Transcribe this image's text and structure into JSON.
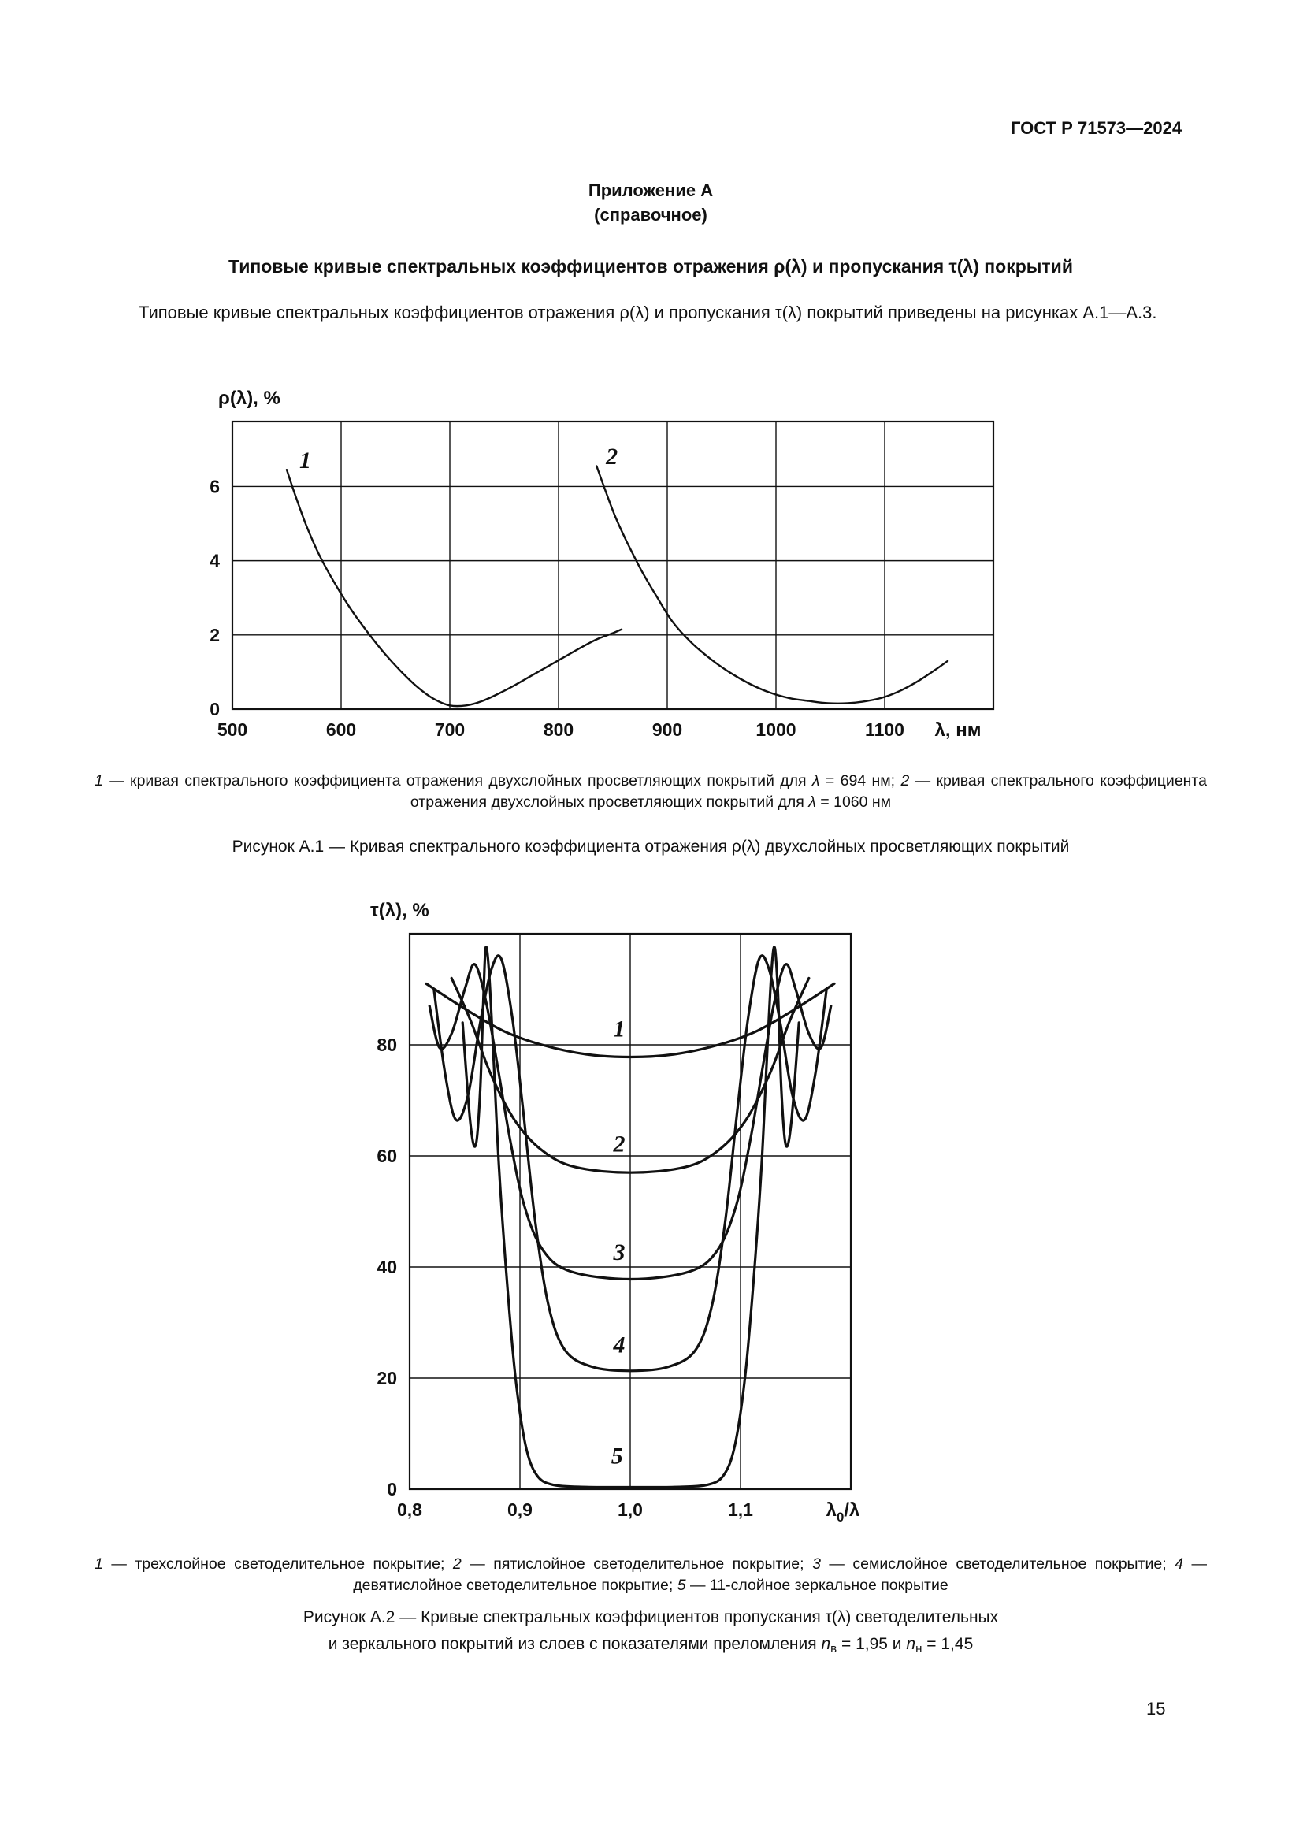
{
  "page": {
    "header": "ГОСТ Р 71573—2024",
    "number": "15",
    "ink_color": "#111111",
    "background_color": "#ffffff"
  },
  "appendix": {
    "label": "Приложение А",
    "kind": "(справочное)"
  },
  "title": "Типовые кривые спектральных коэффициентов отражения ρ(λ) и пропускания τ(λ) покрытий",
  "intro": "Типовые кривые спектральных коэффициентов отражения ρ(λ) и пропускания τ(λ) покрытий приведены на рисунках А.1—А.3.",
  "figure1": {
    "legend": [
      {
        "t": "1",
        "st": "i"
      },
      {
        "t": " — кривая спектрального коэффициента отражения двухслойных просветляющих покрытий для "
      },
      {
        "t": "λ",
        "st": "i"
      },
      {
        "t": " = 694 нм; "
      },
      {
        "t": "2",
        "st": "i"
      },
      {
        "t": " — кривая спектрального коэффициента отражения двухслойных просветляющих покрытий для "
      },
      {
        "t": "λ",
        "st": "i"
      },
      {
        "t": " = 1060 нм"
      }
    ],
    "caption": "Рисунок А.1 — Кривая спектрального коэффициента отражения ρ(λ) двухслойных просветляющих покрытий"
  },
  "figure2": {
    "legend": [
      {
        "t": "1",
        "st": "i"
      },
      {
        "t": " — трехслойное светоделительное покрытие; "
      },
      {
        "t": "2",
        "st": "i"
      },
      {
        "t": " — пятислойное светоделительное покрытие; "
      },
      {
        "t": "3",
        "st": "i"
      },
      {
        "t": " — семислойное светоделительное покрытие; "
      },
      {
        "t": "4",
        "st": "i"
      },
      {
        "t": " — девятислойное светоделительное покрытие; "
      },
      {
        "t": "5",
        "st": "i"
      },
      {
        "t": " — 11-слойное зеркальное покрытие"
      }
    ],
    "caption": [
      {
        "t": "Рисунок А.2 — Кривые спектральных коэффициентов пропускания τ(λ) светоделительных"
      },
      {
        "br": true
      },
      {
        "t": "и зеркального покрытий из слоев с показателями преломления "
      },
      {
        "t": "n",
        "st": "i"
      },
      {
        "t": "в",
        "st": "sub"
      },
      {
        "t": " = 1,95 и "
      },
      {
        "t": "n",
        "st": "i"
      },
      {
        "t": "н",
        "st": "sub"
      },
      {
        "t": " = 1,45"
      }
    ]
  },
  "chart_data": [
    {
      "type": "line",
      "title": "Рисунок А.1",
      "ylabel": "ρ(λ), %",
      "xlabel_parts": [
        {
          "t": "λ, нм"
        }
      ],
      "xlim": [
        500,
        1200
      ],
      "ylim": [
        0,
        7.75
      ],
      "grid": true,
      "legend_position": "none",
      "xticks": [
        {
          "v": 500,
          "label": "500"
        },
        {
          "v": 600,
          "label": "600"
        },
        {
          "v": 700,
          "label": "700"
        },
        {
          "v": 800,
          "label": "800"
        },
        {
          "v": 900,
          "label": "900"
        },
        {
          "v": 1000,
          "label": "1000"
        },
        {
          "v": 1100,
          "label": "1100"
        }
      ],
      "yticks": [
        {
          "v": 0,
          "label": "0"
        },
        {
          "v": 2,
          "label": "2"
        },
        {
          "v": 4,
          "label": "4"
        },
        {
          "v": 6,
          "label": "6"
        }
      ],
      "series": [
        {
          "name": "1",
          "label_pos": [
            567,
            6.5
          ],
          "points": [
            [
              550,
              6.45
            ],
            [
              558,
              5.75
            ],
            [
              568,
              4.95
            ],
            [
              580,
              4.15
            ],
            [
              595,
              3.35
            ],
            [
              610,
              2.65
            ],
            [
              625,
              2.05
            ],
            [
              640,
              1.5
            ],
            [
              655,
              1.02
            ],
            [
              670,
              0.6
            ],
            [
              685,
              0.28
            ],
            [
              700,
              0.1
            ],
            [
              715,
              0.1
            ],
            [
              730,
              0.22
            ],
            [
              745,
              0.42
            ],
            [
              760,
              0.65
            ],
            [
              775,
              0.9
            ],
            [
              790,
              1.15
            ],
            [
              805,
              1.4
            ],
            [
              820,
              1.65
            ],
            [
              835,
              1.88
            ],
            [
              850,
              2.05
            ],
            [
              858,
              2.15
            ]
          ]
        },
        {
          "name": "2",
          "label_pos": [
            849,
            6.6
          ],
          "points": [
            [
              835,
              6.55
            ],
            [
              843,
              5.9
            ],
            [
              852,
              5.2
            ],
            [
              863,
              4.5
            ],
            [
              876,
              3.75
            ],
            [
              890,
              3.05
            ],
            [
              905,
              2.35
            ],
            [
              922,
              1.8
            ],
            [
              940,
              1.35
            ],
            [
              958,
              0.98
            ],
            [
              976,
              0.68
            ],
            [
              994,
              0.45
            ],
            [
              1012,
              0.3
            ],
            [
              1030,
              0.22
            ],
            [
              1048,
              0.16
            ],
            [
              1066,
              0.16
            ],
            [
              1084,
              0.22
            ],
            [
              1100,
              0.33
            ],
            [
              1116,
              0.52
            ],
            [
              1132,
              0.78
            ],
            [
              1146,
              1.05
            ],
            [
              1158,
              1.3
            ]
          ]
        }
      ]
    },
    {
      "type": "line",
      "title": "Рисунок А.2",
      "ylabel": "τ(λ), %",
      "xlabel_parts": [
        {
          "t": "λ"
        },
        {
          "t": "0",
          "st": "sub"
        },
        {
          "t": "/λ"
        }
      ],
      "xlim": [
        0.8,
        1.2
      ],
      "ylim": [
        0,
        100
      ],
      "grid": true,
      "legend_position": "none",
      "xticks": [
        {
          "v": 0.8,
          "label": "0,8"
        },
        {
          "v": 0.9,
          "label": "0,9"
        },
        {
          "v": 1.0,
          "label": "1,0"
        },
        {
          "v": 1.1,
          "label": "1,1"
        }
      ],
      "yticks": [
        {
          "v": 0,
          "label": "0"
        },
        {
          "v": 20,
          "label": "20"
        },
        {
          "v": 40,
          "label": "40"
        },
        {
          "v": 60,
          "label": "60"
        },
        {
          "v": 80,
          "label": "80"
        }
      ],
      "series": [
        {
          "name": "1",
          "label_pos": [
            0.99,
            81.5
          ],
          "points": [
            [
              0.815,
              91
            ],
            [
              0.85,
              86.5
            ],
            [
              0.885,
              82.5
            ],
            [
              0.92,
              80
            ],
            [
              0.96,
              78.3
            ],
            [
              1.0,
              77.8
            ],
            [
              1.04,
              78.3
            ],
            [
              1.08,
              80
            ],
            [
              1.115,
              82.5
            ],
            [
              1.15,
              86.5
            ],
            [
              1.185,
              91
            ]
          ]
        },
        {
          "name": "2",
          "label_pos": [
            0.99,
            60.8
          ],
          "points": [
            [
              0.838,
              92
            ],
            [
              0.855,
              84.5
            ],
            [
              0.873,
              75
            ],
            [
              0.895,
              66.5
            ],
            [
              0.92,
              61
            ],
            [
              0.95,
              58
            ],
            [
              1.0,
              57
            ],
            [
              1.05,
              58
            ],
            [
              1.08,
              61
            ],
            [
              1.105,
              66.5
            ],
            [
              1.127,
              75
            ],
            [
              1.145,
              84.5
            ],
            [
              1.162,
              92
            ]
          ]
        },
        {
          "name": "3",
          "label_pos": [
            0.99,
            41.3
          ],
          "points": [
            [
              0.818,
              87
            ],
            [
              0.827,
              79.5
            ],
            [
              0.838,
              82
            ],
            [
              0.85,
              90
            ],
            [
              0.859,
              94.5
            ],
            [
              0.869,
              88
            ],
            [
              0.879,
              77
            ],
            [
              0.891,
              63
            ],
            [
              0.904,
              51
            ],
            [
              0.921,
              43
            ],
            [
              0.946,
              39.2
            ],
            [
              1.0,
              37.8
            ],
            [
              1.054,
              39.2
            ],
            [
              1.079,
              43
            ],
            [
              1.096,
              51
            ],
            [
              1.109,
              63
            ],
            [
              1.121,
              77
            ],
            [
              1.131,
              88
            ],
            [
              1.141,
              94.5
            ],
            [
              1.15,
              90
            ],
            [
              1.162,
              82
            ],
            [
              1.173,
              79.5
            ],
            [
              1.182,
              87
            ]
          ]
        },
        {
          "name": "4",
          "label_pos": [
            0.99,
            24.6
          ],
          "points": [
            [
              0.822,
              90
            ],
            [
              0.832,
              75
            ],
            [
              0.842,
              66.5
            ],
            [
              0.853,
              71
            ],
            [
              0.864,
              84
            ],
            [
              0.874,
              93.5
            ],
            [
              0.883,
              95.5
            ],
            [
              0.893,
              85
            ],
            [
              0.903,
              68
            ],
            [
              0.914,
              48
            ],
            [
              0.926,
              33
            ],
            [
              0.941,
              25
            ],
            [
              0.966,
              22
            ],
            [
              1.0,
              21.3
            ],
            [
              1.034,
              22
            ],
            [
              1.059,
              25
            ],
            [
              1.074,
              33
            ],
            [
              1.086,
              48
            ],
            [
              1.097,
              68
            ],
            [
              1.107,
              85
            ],
            [
              1.117,
              95.5
            ],
            [
              1.126,
              93.5
            ],
            [
              1.136,
              84
            ],
            [
              1.147,
              71
            ],
            [
              1.158,
              66.5
            ],
            [
              1.168,
              75
            ],
            [
              1.178,
              90
            ]
          ]
        },
        {
          "name": "5",
          "label_pos": [
            0.988,
            4.6
          ],
          "points": [
            [
              0.848,
              84
            ],
            [
              0.855,
              66
            ],
            [
              0.86,
              62
            ],
            [
              0.864,
              72
            ],
            [
              0.867,
              89
            ],
            [
              0.869,
              97.5
            ],
            [
              0.872,
              93
            ],
            [
              0.876,
              78
            ],
            [
              0.881,
              58
            ],
            [
              0.888,
              38
            ],
            [
              0.896,
              20
            ],
            [
              0.905,
              8
            ],
            [
              0.915,
              2.6
            ],
            [
              0.93,
              0.8
            ],
            [
              0.96,
              0.4
            ],
            [
              1.0,
              0.35
            ],
            [
              1.04,
              0.4
            ],
            [
              1.07,
              0.8
            ],
            [
              1.085,
              2.6
            ],
            [
              1.095,
              8
            ],
            [
              1.104,
              20
            ],
            [
              1.112,
              38
            ],
            [
              1.119,
              58
            ],
            [
              1.124,
              78
            ],
            [
              1.128,
              93
            ],
            [
              1.131,
              97.5
            ],
            [
              1.134,
              89
            ],
            [
              1.137,
              72
            ],
            [
              1.141,
              62
            ],
            [
              1.146,
              66
            ],
            [
              1.153,
              84
            ]
          ]
        }
      ]
    }
  ]
}
